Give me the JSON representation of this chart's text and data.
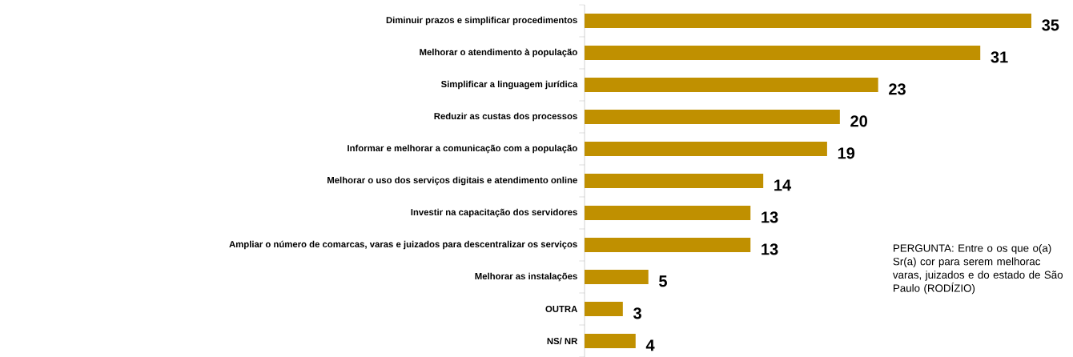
{
  "chart_data": {
    "type": "bar",
    "orientation": "horizontal",
    "categories": [
      "Diminuir prazos e simplificar procedimentos",
      "Melhorar o atendimento à população",
      "Simplificar a linguagem jurídica",
      "Reduzir as custas dos processos",
      "Informar e melhorar a comunicação com a população",
      "Melhorar o uso dos serviços digitais e atendimento online",
      "Investir na capacitação dos servidores",
      "Ampliar o número de comarcas, varas e juizados para descentralizar os serviços",
      "Melhorar as instalações",
      "OUTRA",
      "NS/ NR"
    ],
    "values": [
      35,
      31,
      23,
      20,
      19,
      14,
      13,
      13,
      5,
      3,
      4
    ],
    "color": "#c09000",
    "data_labels": true,
    "annotations": [
      "PERGUNTA: Entre o os que o(a) Sr(a) cor para serem melhorac varas, juizados e do estado de São Paulo (RODÍZIO)"
    ]
  }
}
